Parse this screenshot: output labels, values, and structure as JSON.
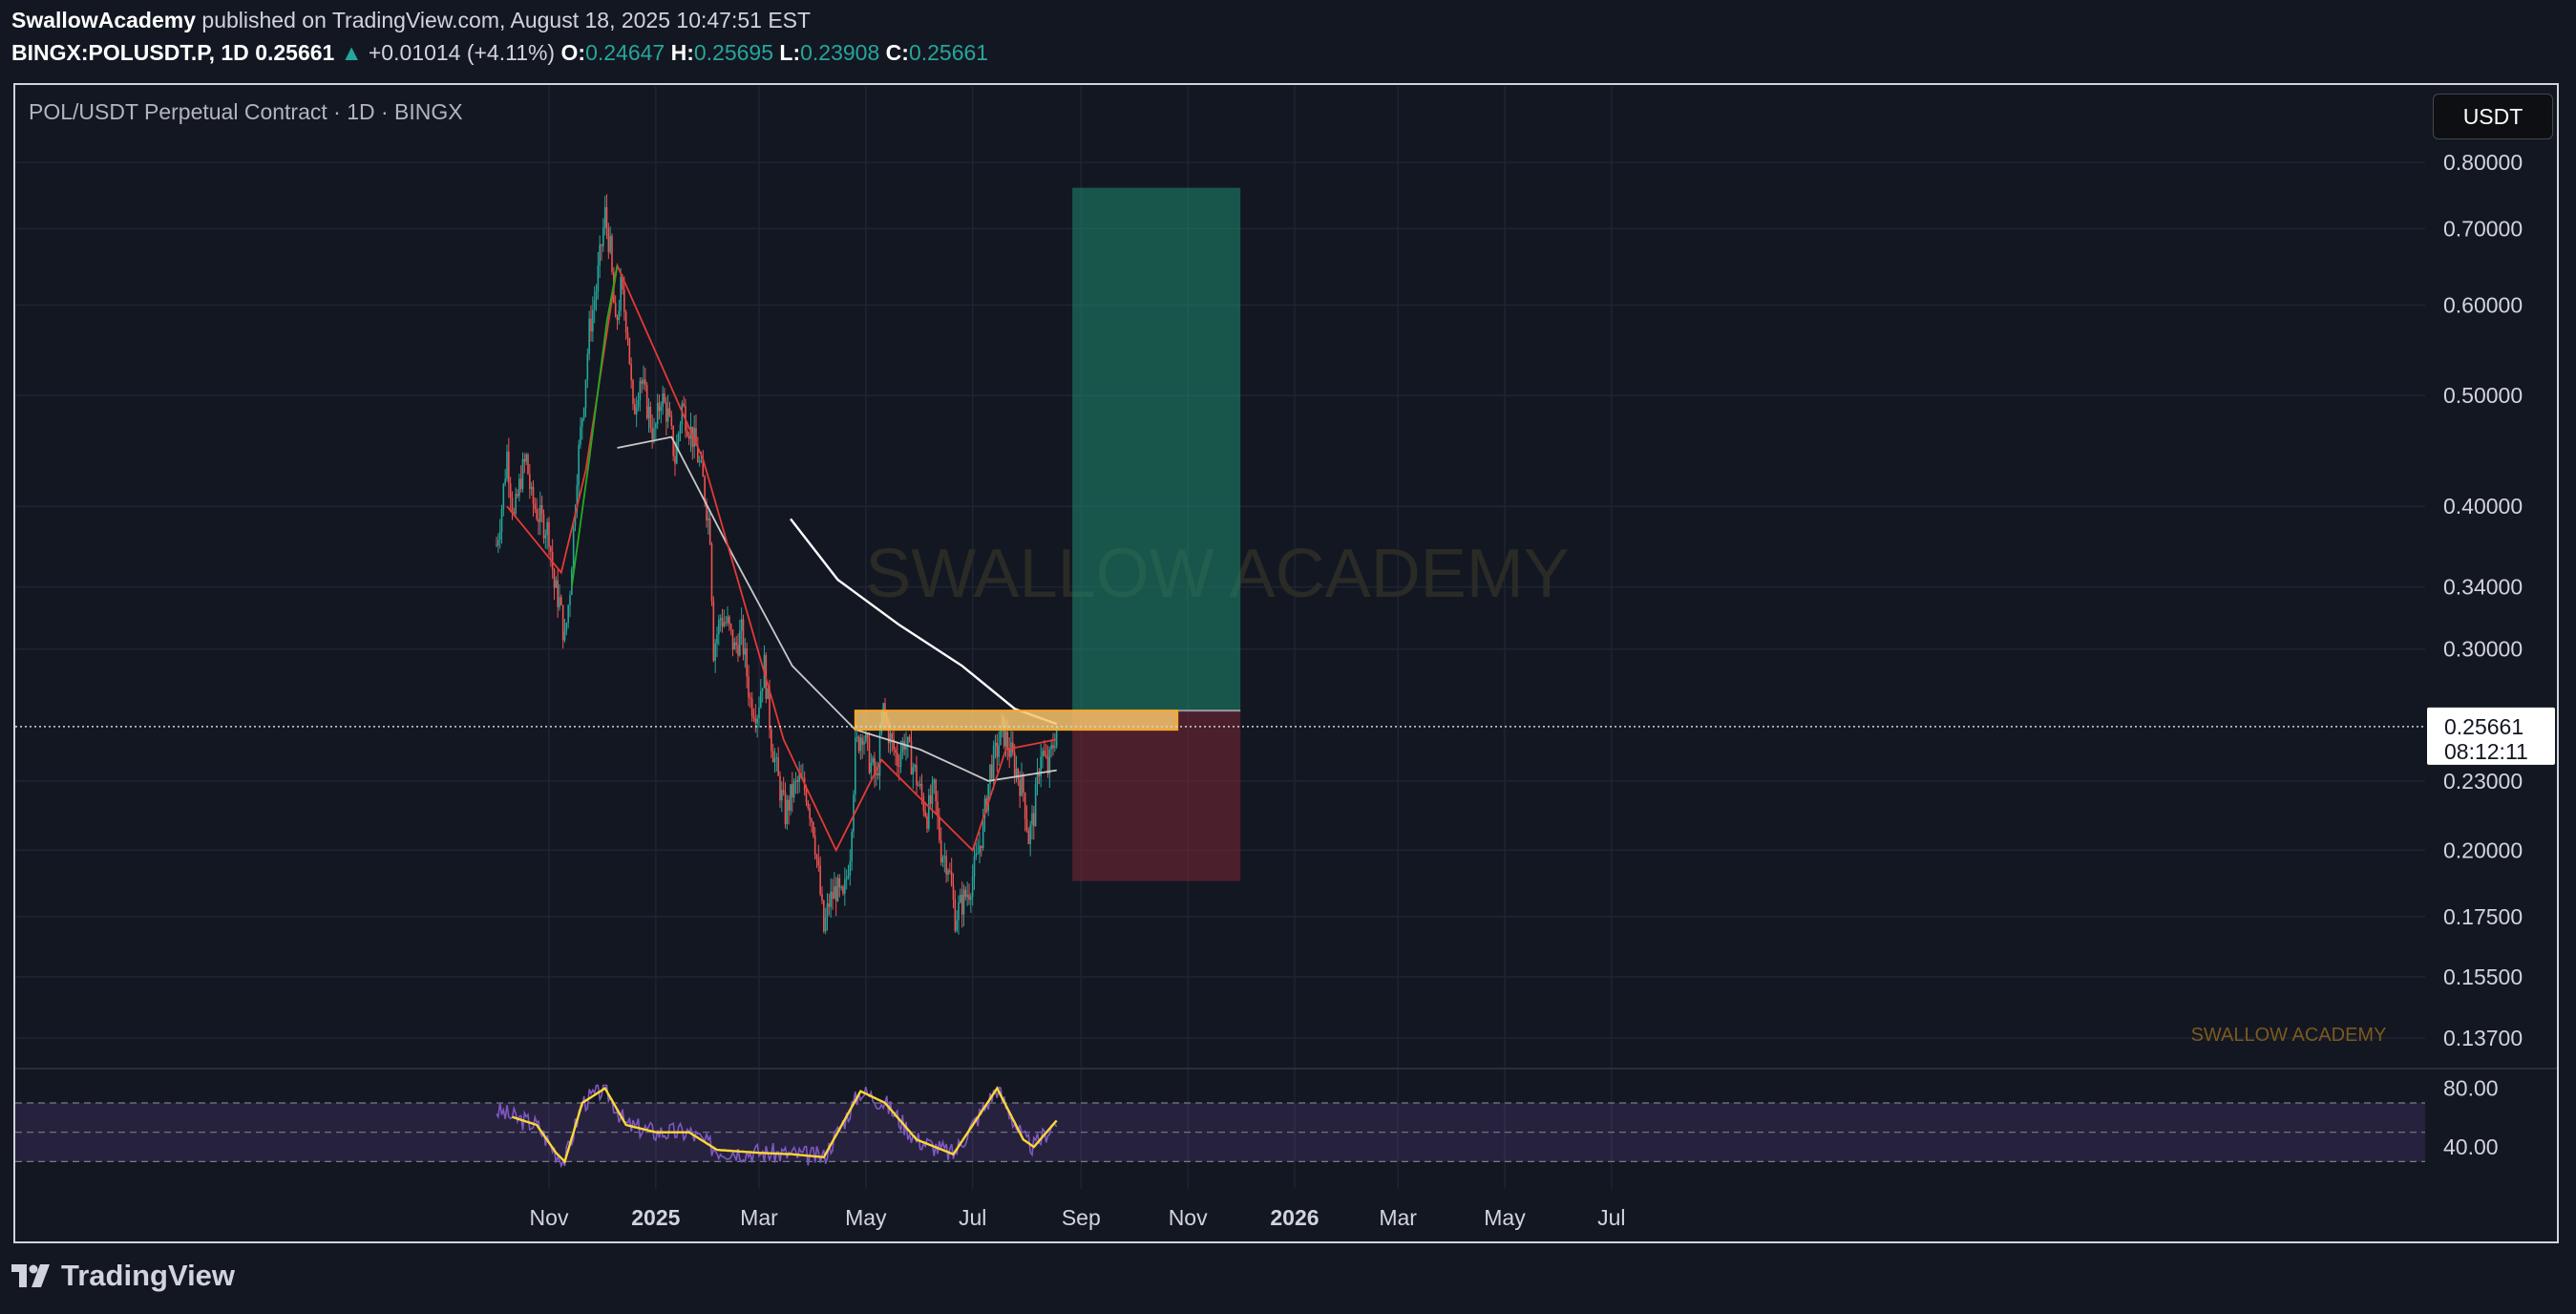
{
  "header": {
    "author": "SwallowAcademy",
    "published": "published on TradingView.com, August 18, 2025 10:47:51 EST",
    "symbol": "BINGX:POLUSDT.P, 1D",
    "last": "0.25661",
    "change_arrow": "▲",
    "change": "+0.01014 (+4.11%)",
    "o_label": "O:",
    "o": "0.24647",
    "h_label": "H:",
    "h": "0.25695",
    "l_label": "L:",
    "l": "0.23908",
    "c_label": "C:",
    "c": "0.25661"
  },
  "chart": {
    "title": "POL/USDT Perpetual Contract · 1D · BINGX",
    "currency_button": "USDT",
    "watermark_center": "SWALLOW ACADEMY",
    "watermark_corner": "SWALLOW ACADEMY",
    "price_label": "0.25661",
    "countdown": "08:12:11"
  },
  "footer": {
    "brand": "TradingView"
  },
  "colors": {
    "up": "#26a69a",
    "down": "#ef5350",
    "bg": "#131722",
    "ema_fast": "#22ab22",
    "ema_mid": "#e53935",
    "sma": "#ffffff",
    "rsi": "#7e57c2",
    "rsi_ma": "#fdd835",
    "zone": "#f7c46c",
    "target": "#1e8a6f",
    "stop": "#7a2733"
  },
  "chart_data": {
    "type": "candlestick",
    "symbol": "BINGX:POLUSDT.P",
    "interval": "1D",
    "scale": "log",
    "y_ticks": [
      "0.80000",
      "0.70000",
      "0.60000",
      "0.50000",
      "0.40000",
      "0.34000",
      "0.30000",
      "0.23000",
      "0.20000",
      "0.17500",
      "0.15500",
      "0.13700"
    ],
    "x_ticks": [
      {
        "label": "Nov",
        "date": "2024-11-01"
      },
      {
        "label": "2025",
        "date": "2025-01-01",
        "bold": true
      },
      {
        "label": "Mar",
        "date": "2025-03-01"
      },
      {
        "label": "May",
        "date": "2025-05-01"
      },
      {
        "label": "Jul",
        "date": "2025-07-01"
      },
      {
        "label": "Sep",
        "date": "2025-09-01"
      },
      {
        "label": "Nov",
        "date": "2025-11-01"
      },
      {
        "label": "2026",
        "date": "2026-01-01",
        "bold": true
      },
      {
        "label": "Mar",
        "date": "2026-03-01"
      },
      {
        "label": "May",
        "date": "2026-05-01"
      },
      {
        "label": "Jul",
        "date": "2026-07-01"
      }
    ],
    "price_path": [
      [
        "2024-10-02",
        0.37
      ],
      [
        "2024-10-05",
        0.4
      ],
      [
        "2024-10-08",
        0.445
      ],
      [
        "2024-10-12",
        0.39
      ],
      [
        "2024-10-16",
        0.425
      ],
      [
        "2024-10-19",
        0.44
      ],
      [
        "2024-10-22",
        0.405
      ],
      [
        "2024-10-27",
        0.39
      ],
      [
        "2024-11-01",
        0.38
      ],
      [
        "2024-11-04",
        0.34
      ],
      [
        "2024-11-07",
        0.33
      ],
      [
        "2024-11-10",
        0.305
      ],
      [
        "2024-11-13",
        0.34
      ],
      [
        "2024-11-17",
        0.43
      ],
      [
        "2024-11-21",
        0.5
      ],
      [
        "2024-11-24",
        0.57
      ],
      [
        "2024-11-28",
        0.62
      ],
      [
        "2024-12-03",
        0.72
      ],
      [
        "2024-12-06",
        0.67
      ],
      [
        "2024-12-09",
        0.57
      ],
      [
        "2024-12-12",
        0.62
      ],
      [
        "2024-12-16",
        0.57
      ],
      [
        "2024-12-19",
        0.48
      ],
      [
        "2024-12-23",
        0.52
      ],
      [
        "2024-12-27",
        0.49
      ],
      [
        "2024-12-31",
        0.46
      ],
      [
        "2025-01-04",
        0.5
      ],
      [
        "2025-01-08",
        0.48
      ],
      [
        "2025-01-12",
        0.44
      ],
      [
        "2025-01-16",
        0.49
      ],
      [
        "2025-01-20",
        0.47
      ],
      [
        "2025-01-24",
        0.45
      ],
      [
        "2025-01-28",
        0.42
      ],
      [
        "2025-02-01",
        0.38
      ],
      [
        "2025-02-03",
        0.3
      ],
      [
        "2025-02-07",
        0.32
      ],
      [
        "2025-02-11",
        0.315
      ],
      [
        "2025-02-15",
        0.3
      ],
      [
        "2025-02-19",
        0.31
      ],
      [
        "2025-02-24",
        0.27
      ],
      [
        "2025-02-28",
        0.265
      ],
      [
        "2025-03-04",
        0.29
      ],
      [
        "2025-03-08",
        0.25
      ],
      [
        "2025-03-12",
        0.23
      ],
      [
        "2025-03-16",
        0.215
      ],
      [
        "2025-03-20",
        0.225
      ],
      [
        "2025-03-24",
        0.23
      ],
      [
        "2025-03-28",
        0.225
      ],
      [
        "2025-04-01",
        0.21
      ],
      [
        "2025-04-04",
        0.19
      ],
      [
        "2025-04-07",
        0.17
      ],
      [
        "2025-04-10",
        0.18
      ],
      [
        "2025-04-14",
        0.185
      ],
      [
        "2025-04-18",
        0.18
      ],
      [
        "2025-04-22",
        0.2
      ],
      [
        "2025-04-25",
        0.245
      ],
      [
        "2025-04-29",
        0.255
      ],
      [
        "2025-05-03",
        0.24
      ],
      [
        "2025-05-07",
        0.23
      ],
      [
        "2025-05-11",
        0.265
      ],
      [
        "2025-05-15",
        0.25
      ],
      [
        "2025-05-19",
        0.24
      ],
      [
        "2025-05-23",
        0.25
      ],
      [
        "2025-05-27",
        0.24
      ],
      [
        "2025-06-01",
        0.225
      ],
      [
        "2025-06-05",
        0.215
      ],
      [
        "2025-06-09",
        0.225
      ],
      [
        "2025-06-13",
        0.2
      ],
      [
        "2025-06-17",
        0.195
      ],
      [
        "2025-06-21",
        0.175
      ],
      [
        "2025-06-25",
        0.18
      ],
      [
        "2025-06-29",
        0.185
      ],
      [
        "2025-07-03",
        0.195
      ],
      [
        "2025-07-07",
        0.21
      ],
      [
        "2025-07-11",
        0.235
      ],
      [
        "2025-07-15",
        0.245
      ],
      [
        "2025-07-18",
        0.255
      ],
      [
        "2025-07-22",
        0.245
      ],
      [
        "2025-07-26",
        0.235
      ],
      [
        "2025-07-30",
        0.225
      ],
      [
        "2025-08-02",
        0.205
      ],
      [
        "2025-08-05",
        0.215
      ],
      [
        "2025-08-09",
        0.245
      ],
      [
        "2025-08-13",
        0.235
      ],
      [
        "2025-08-18",
        0.25661
      ]
    ],
    "indicators": {
      "ema_fast": {
        "start": "2024-11-14",
        "path": [
          [
            "2024-11-14",
            0.34
          ],
          [
            "2024-11-24",
            0.44
          ],
          [
            "2024-12-04",
            0.58
          ],
          [
            "2024-12-10",
            0.65
          ]
        ]
      },
      "ema_mid": {
        "start": "2024-10-08",
        "path": [
          [
            "2024-10-08",
            0.4
          ],
          [
            "2024-11-08",
            0.35
          ],
          [
            "2024-11-22",
            0.43
          ],
          [
            "2024-12-10",
            0.65
          ],
          [
            "2025-01-28",
            0.44
          ],
          [
            "2025-03-15",
            0.25
          ],
          [
            "2025-04-14",
            0.2
          ],
          [
            "2025-05-10",
            0.24
          ],
          [
            "2025-07-01",
            0.2
          ],
          [
            "2025-07-20",
            0.245
          ],
          [
            "2025-08-18",
            0.25
          ]
        ]
      },
      "sma_200": {
        "path": [
          [
            "2024-12-10",
            0.45
          ],
          [
            "2025-01-10",
            0.46
          ],
          [
            "2025-02-15",
            0.36
          ],
          [
            "2025-03-20",
            0.29
          ],
          [
            "2025-04-25",
            0.255
          ],
          [
            "2025-06-01",
            0.245
          ],
          [
            "2025-07-10",
            0.23
          ],
          [
            "2025-08-18",
            0.235
          ]
        ]
      },
      "sma_long": {
        "path": [
          [
            "2025-03-19",
            0.39
          ],
          [
            "2025-04-15",
            0.345
          ],
          [
            "2025-05-20",
            0.315
          ],
          [
            "2025-06-25",
            0.29
          ],
          [
            "2025-07-25",
            0.266
          ],
          [
            "2025-08-18",
            0.258
          ]
        ]
      }
    },
    "resistance_zone": {
      "low": 0.255,
      "high": 0.265,
      "from": "2025-04-25",
      "to": "2025-10-26"
    },
    "long_position": {
      "entry": 0.265,
      "target": 0.76,
      "stop": 0.188,
      "from": "2025-08-27",
      "to": "2025-12-01"
    },
    "rsi": {
      "ticks": [
        "80.00",
        "40.00"
      ],
      "upper": 70,
      "lower": 30,
      "path": [
        [
          "2024-10-02",
          65
        ],
        [
          "2024-10-12",
          60
        ],
        [
          "2024-10-25",
          55
        ],
        [
          "2024-11-05",
          36
        ],
        [
          "2024-11-10",
          30
        ],
        [
          "2024-11-20",
          70
        ],
        [
          "2024-12-03",
          80
        ],
        [
          "2024-12-15",
          55
        ],
        [
          "2025-01-01",
          50
        ],
        [
          "2025-01-20",
          50
        ],
        [
          "2025-02-05",
          38
        ],
        [
          "2025-03-01",
          36
        ],
        [
          "2025-03-20",
          35
        ],
        [
          "2025-04-07",
          33
        ],
        [
          "2025-04-28",
          78
        ],
        [
          "2025-05-12",
          70
        ],
        [
          "2025-05-30",
          45
        ],
        [
          "2025-06-20",
          35
        ],
        [
          "2025-07-15",
          80
        ],
        [
          "2025-07-30",
          45
        ],
        [
          "2025-08-05",
          40
        ],
        [
          "2025-08-18",
          58
        ]
      ]
    }
  }
}
